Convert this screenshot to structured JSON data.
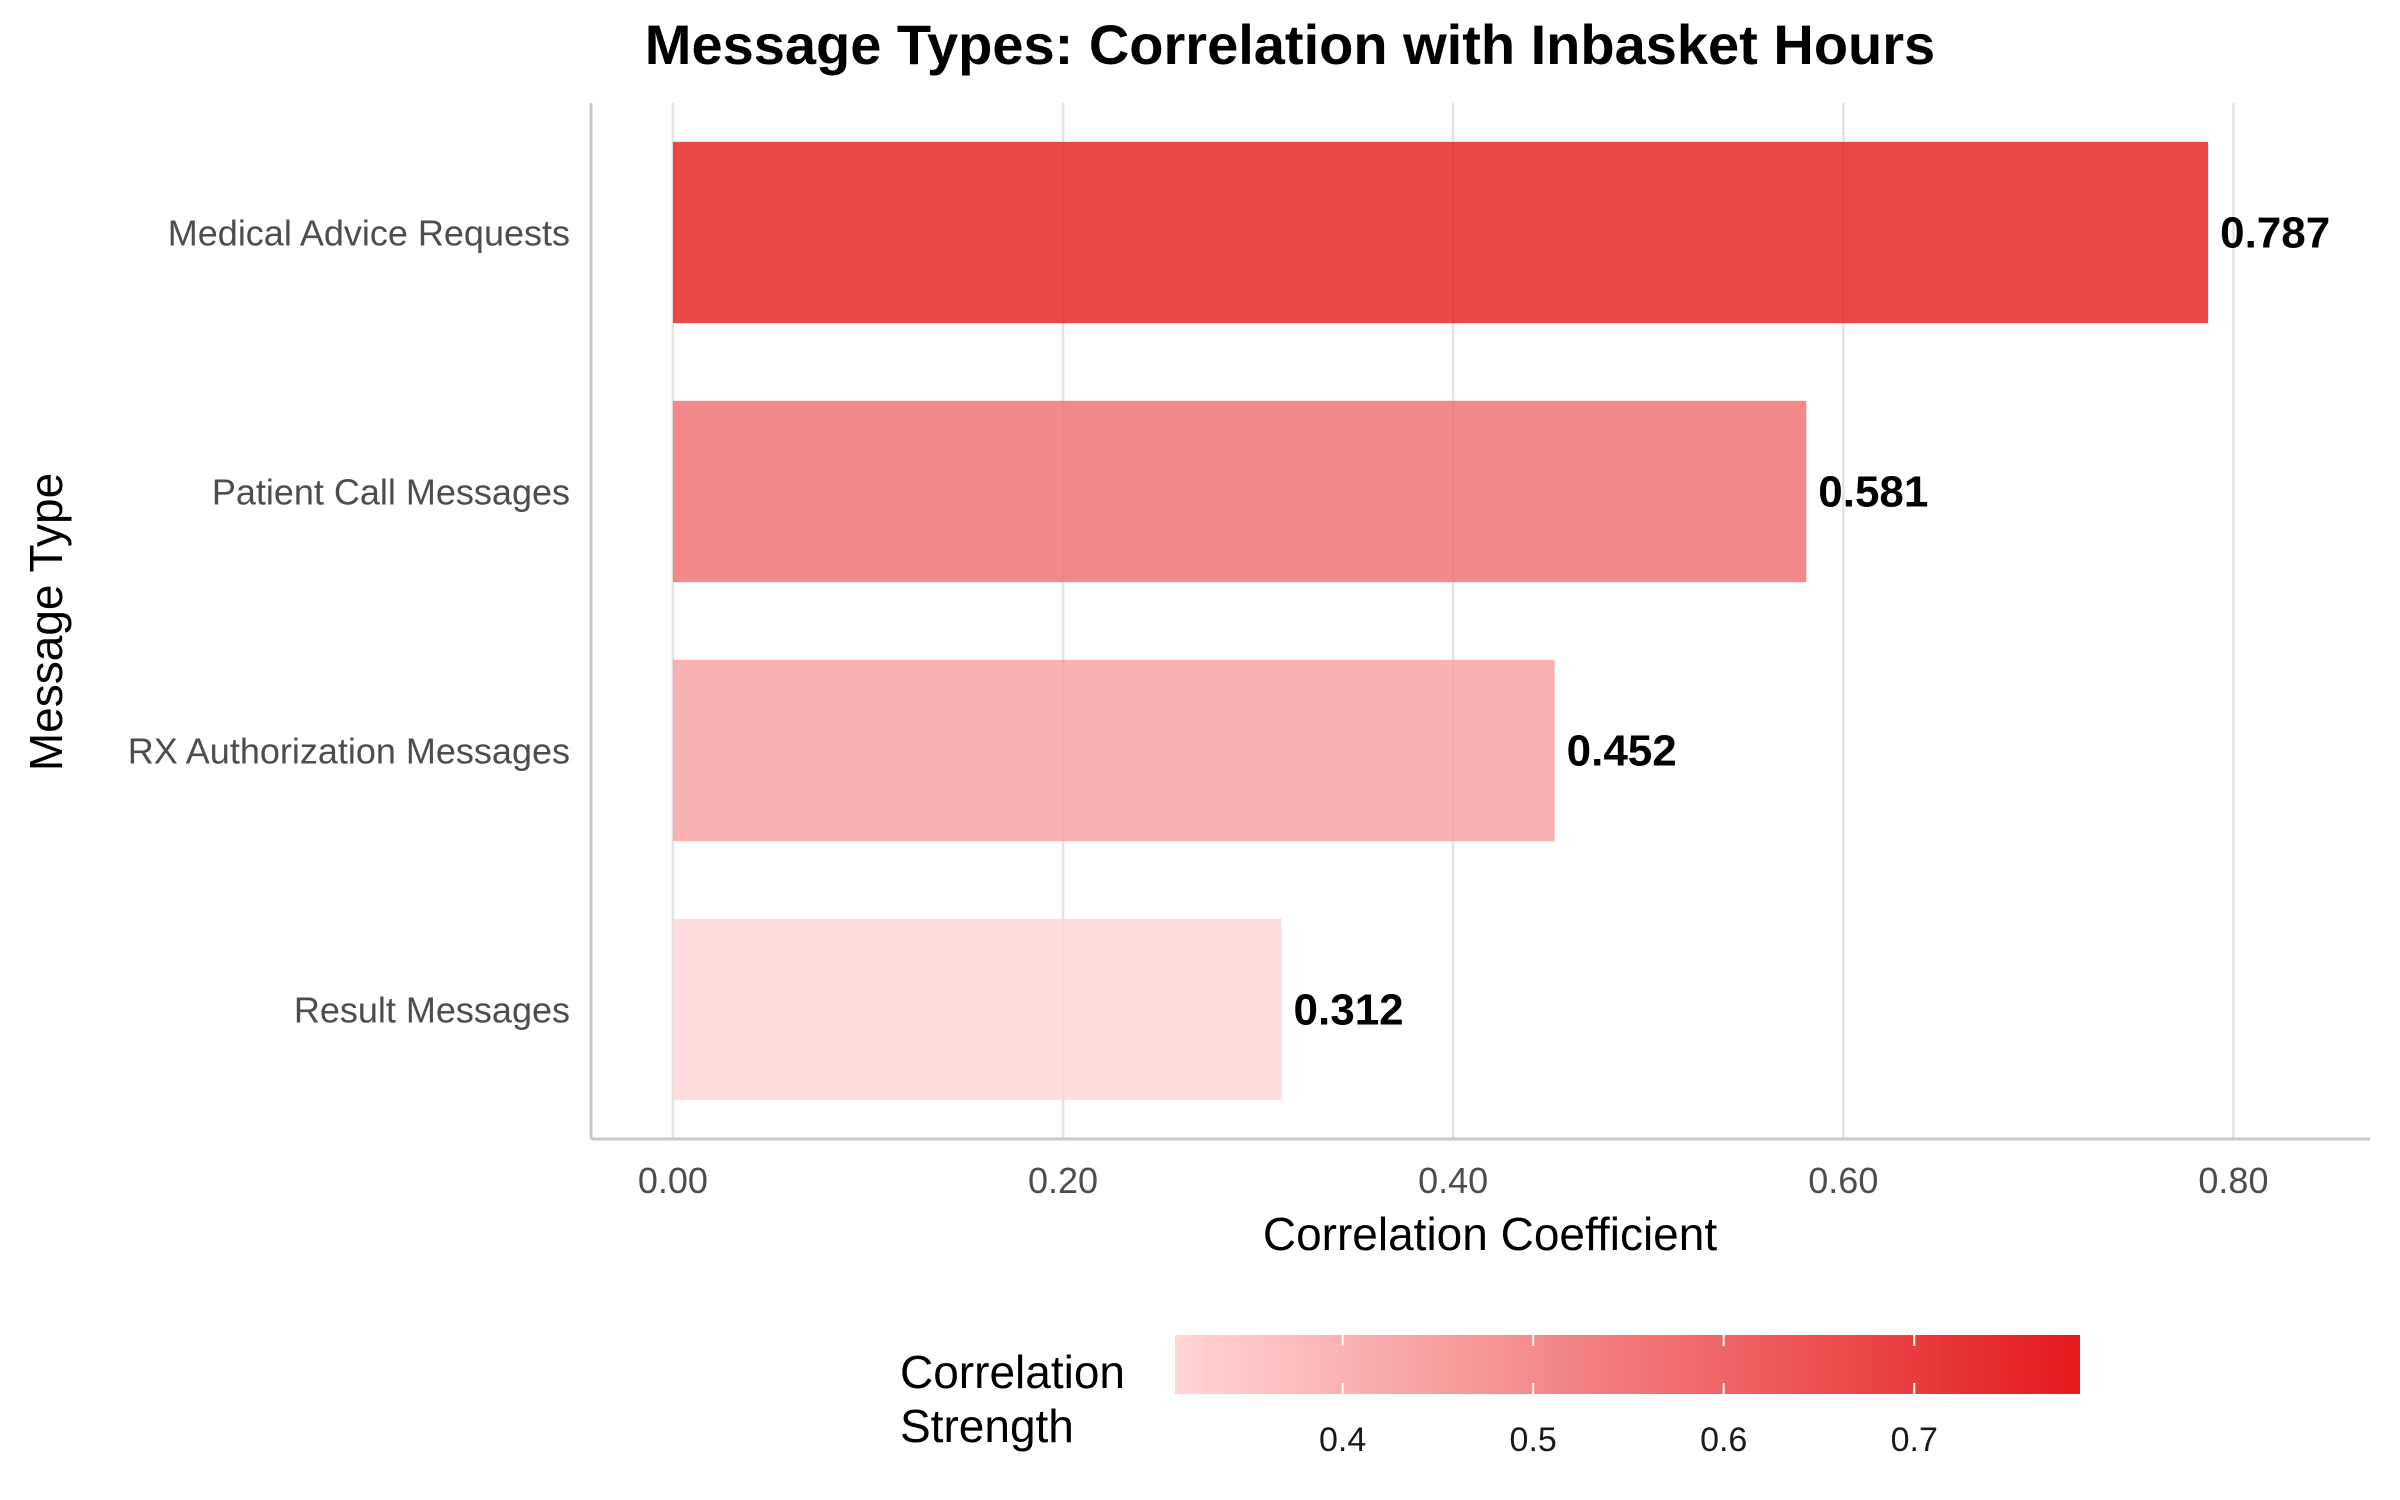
{
  "chart_data": {
    "type": "bar",
    "orientation": "horizontal",
    "title": "Message Types: Correlation with Inbasket Hours",
    "xlabel": "Correlation Coefficient",
    "ylabel": "Message Type",
    "categories": [
      "Medical Advice Requests",
      "Patient Call Messages",
      "RX Authorization Messages",
      "Result Messages"
    ],
    "values": [
      0.787,
      0.581,
      0.452,
      0.312
    ],
    "data_labels": [
      "0.787",
      "0.581",
      "0.452",
      "0.312"
    ],
    "xlim": [
      -0.042,
      0.87
    ],
    "x_ticks": [
      0,
      0.2,
      0.4,
      0.6,
      0.8
    ],
    "x_tick_labels": [
      "0.00",
      "0.20",
      "0.40",
      "0.60",
      "0.80"
    ],
    "grid": "vertical major",
    "legend": {
      "title": "Correlation Strength",
      "title_lines": [
        "Correlation",
        "Strength"
      ],
      "placement": "bottom",
      "type": "continuous gradient",
      "range": [
        0.312,
        0.787
      ],
      "ticks": [
        0.4,
        0.5,
        0.6,
        0.7
      ],
      "tick_labels": [
        "0.4",
        "0.5",
        "0.6",
        "0.7"
      ],
      "low_color": "#FFD5D5",
      "high_color": "#E41A1C"
    },
    "colors": {
      "low": "#FFD5D5",
      "high": "#E41A1C"
    }
  }
}
